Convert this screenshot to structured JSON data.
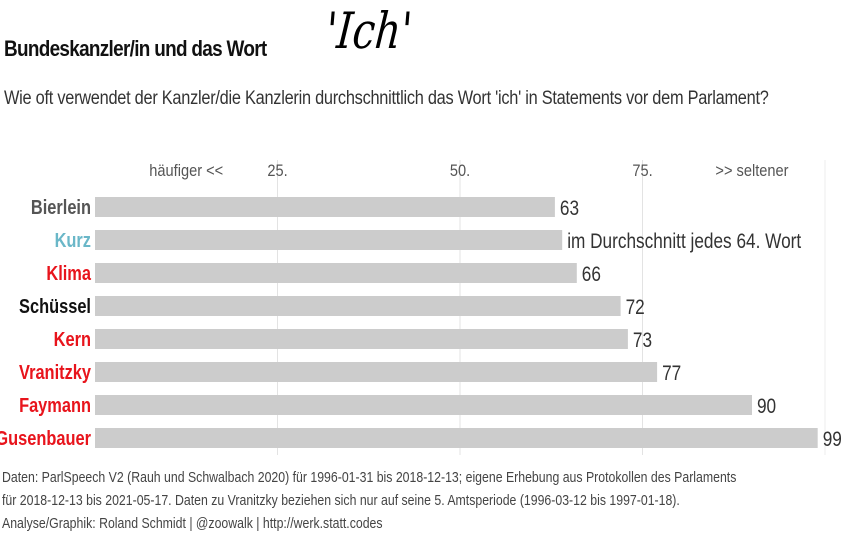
{
  "header": {
    "title": "Bundeskanzler/in und das Wort",
    "title_accent": "'Ich'",
    "subtitle": "Wie oft verwendet der Kanzler/die Kanzlerin durchschnittlich das Wort 'ich' in Statements vor dem Parlament?"
  },
  "chart_data": {
    "type": "bar",
    "orientation": "horizontal",
    "categories": [
      "Bierlein",
      "Kurz",
      "Klima",
      "Schüssel",
      "Kern",
      "Vranitzky",
      "Faymann",
      "Gusenbauer"
    ],
    "values": [
      63,
      64,
      66,
      72,
      73,
      77,
      90,
      99
    ],
    "data_labels": [
      "63",
      "im Durchschnitt jedes 64. Wort",
      "66",
      "72",
      "73",
      "77",
      "90",
      "99"
    ],
    "category_colors": [
      "#555555",
      "#6ab7c8",
      "#e8141c",
      "#111111",
      "#e8141c",
      "#e8141c",
      "#e8141c",
      "#e8141c"
    ],
    "bar_color": "#cccccc",
    "xlim": [
      0,
      100
    ],
    "x_ticks": [
      25,
      50,
      75
    ],
    "x_tick_labels": [
      "25.",
      "50.",
      "75."
    ],
    "axis_note_left": "häufiger <<",
    "axis_note_right": ">> seltener",
    "grid": true
  },
  "footer": {
    "line1": "Daten: ParlSpeech V2 (Rauh und Schwalbach 2020) für 1996-01-31 bis 2018-12-13; eigene Erhebung aus Protokollen des Parlaments",
    "line2": "für 2018-12-13 bis 2021-05-17. Daten zu Vranitzky beziehen sich nur auf seine 5. Amtsperiode (1996-03-12 bis 1997-01-18).",
    "line3": "Analyse/Graphik: Roland Schmidt | @zoowalk | http://werk.statt.codes"
  }
}
